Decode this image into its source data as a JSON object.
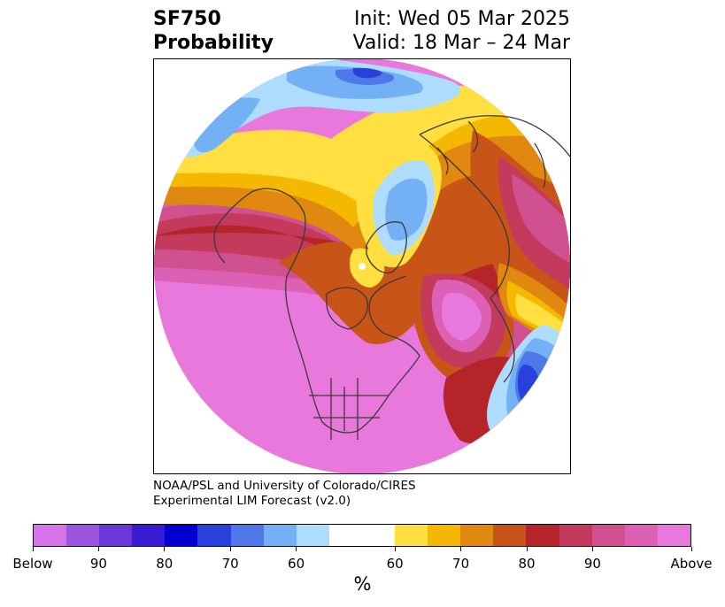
{
  "header": {
    "title_line1": "SF750",
    "title_line2": "Probability",
    "init": "Init: Wed 05 Mar 2025",
    "valid": "Valid: 18 Mar – 24 Mar"
  },
  "credit": {
    "line1": "NOAA/PSL and University of Colorado/CIRES",
    "line2": "Experimental LIM Forecast (v2.0)"
  },
  "colorbar": {
    "segments": [
      {
        "color": "#d574e8"
      },
      {
        "color": "#9b56e0"
      },
      {
        "color": "#6a38d8"
      },
      {
        "color": "#3a1ad4"
      },
      {
        "color": "#0000d0"
      },
      {
        "color": "#2840dc"
      },
      {
        "color": "#4e78e8"
      },
      {
        "color": "#74b0f4"
      },
      {
        "color": "#aedcfc"
      },
      {
        "color": "#ffffff",
        "wide": true
      },
      {
        "color": "#ffe040"
      },
      {
        "color": "#f4b800"
      },
      {
        "color": "#e08810"
      },
      {
        "color": "#c85418"
      },
      {
        "color": "#b42428"
      },
      {
        "color": "#c43a5c"
      },
      {
        "color": "#d05090"
      },
      {
        "color": "#dc60b4"
      },
      {
        "color": "#e878dc"
      }
    ],
    "tick_labels": [
      "Below",
      "90",
      "80",
      "70",
      "60",
      "60",
      "70",
      "80",
      "90",
      "Above"
    ],
    "unit": "%"
  },
  "map": {
    "palette": {
      "above": "#e878dc",
      "above90": "#dc60b4",
      "above85": "#d05090",
      "above80": "#c43a5c",
      "above75": "#b42428",
      "above70": "#c85418",
      "above65": "#e08810",
      "above60": "#f4b800",
      "above55": "#ffe040",
      "below55": "#aedcfc",
      "below60": "#74b0f4",
      "below65": "#4e78e8",
      "below70": "#2840dc",
      "coast": "#3a3a3a"
    }
  }
}
